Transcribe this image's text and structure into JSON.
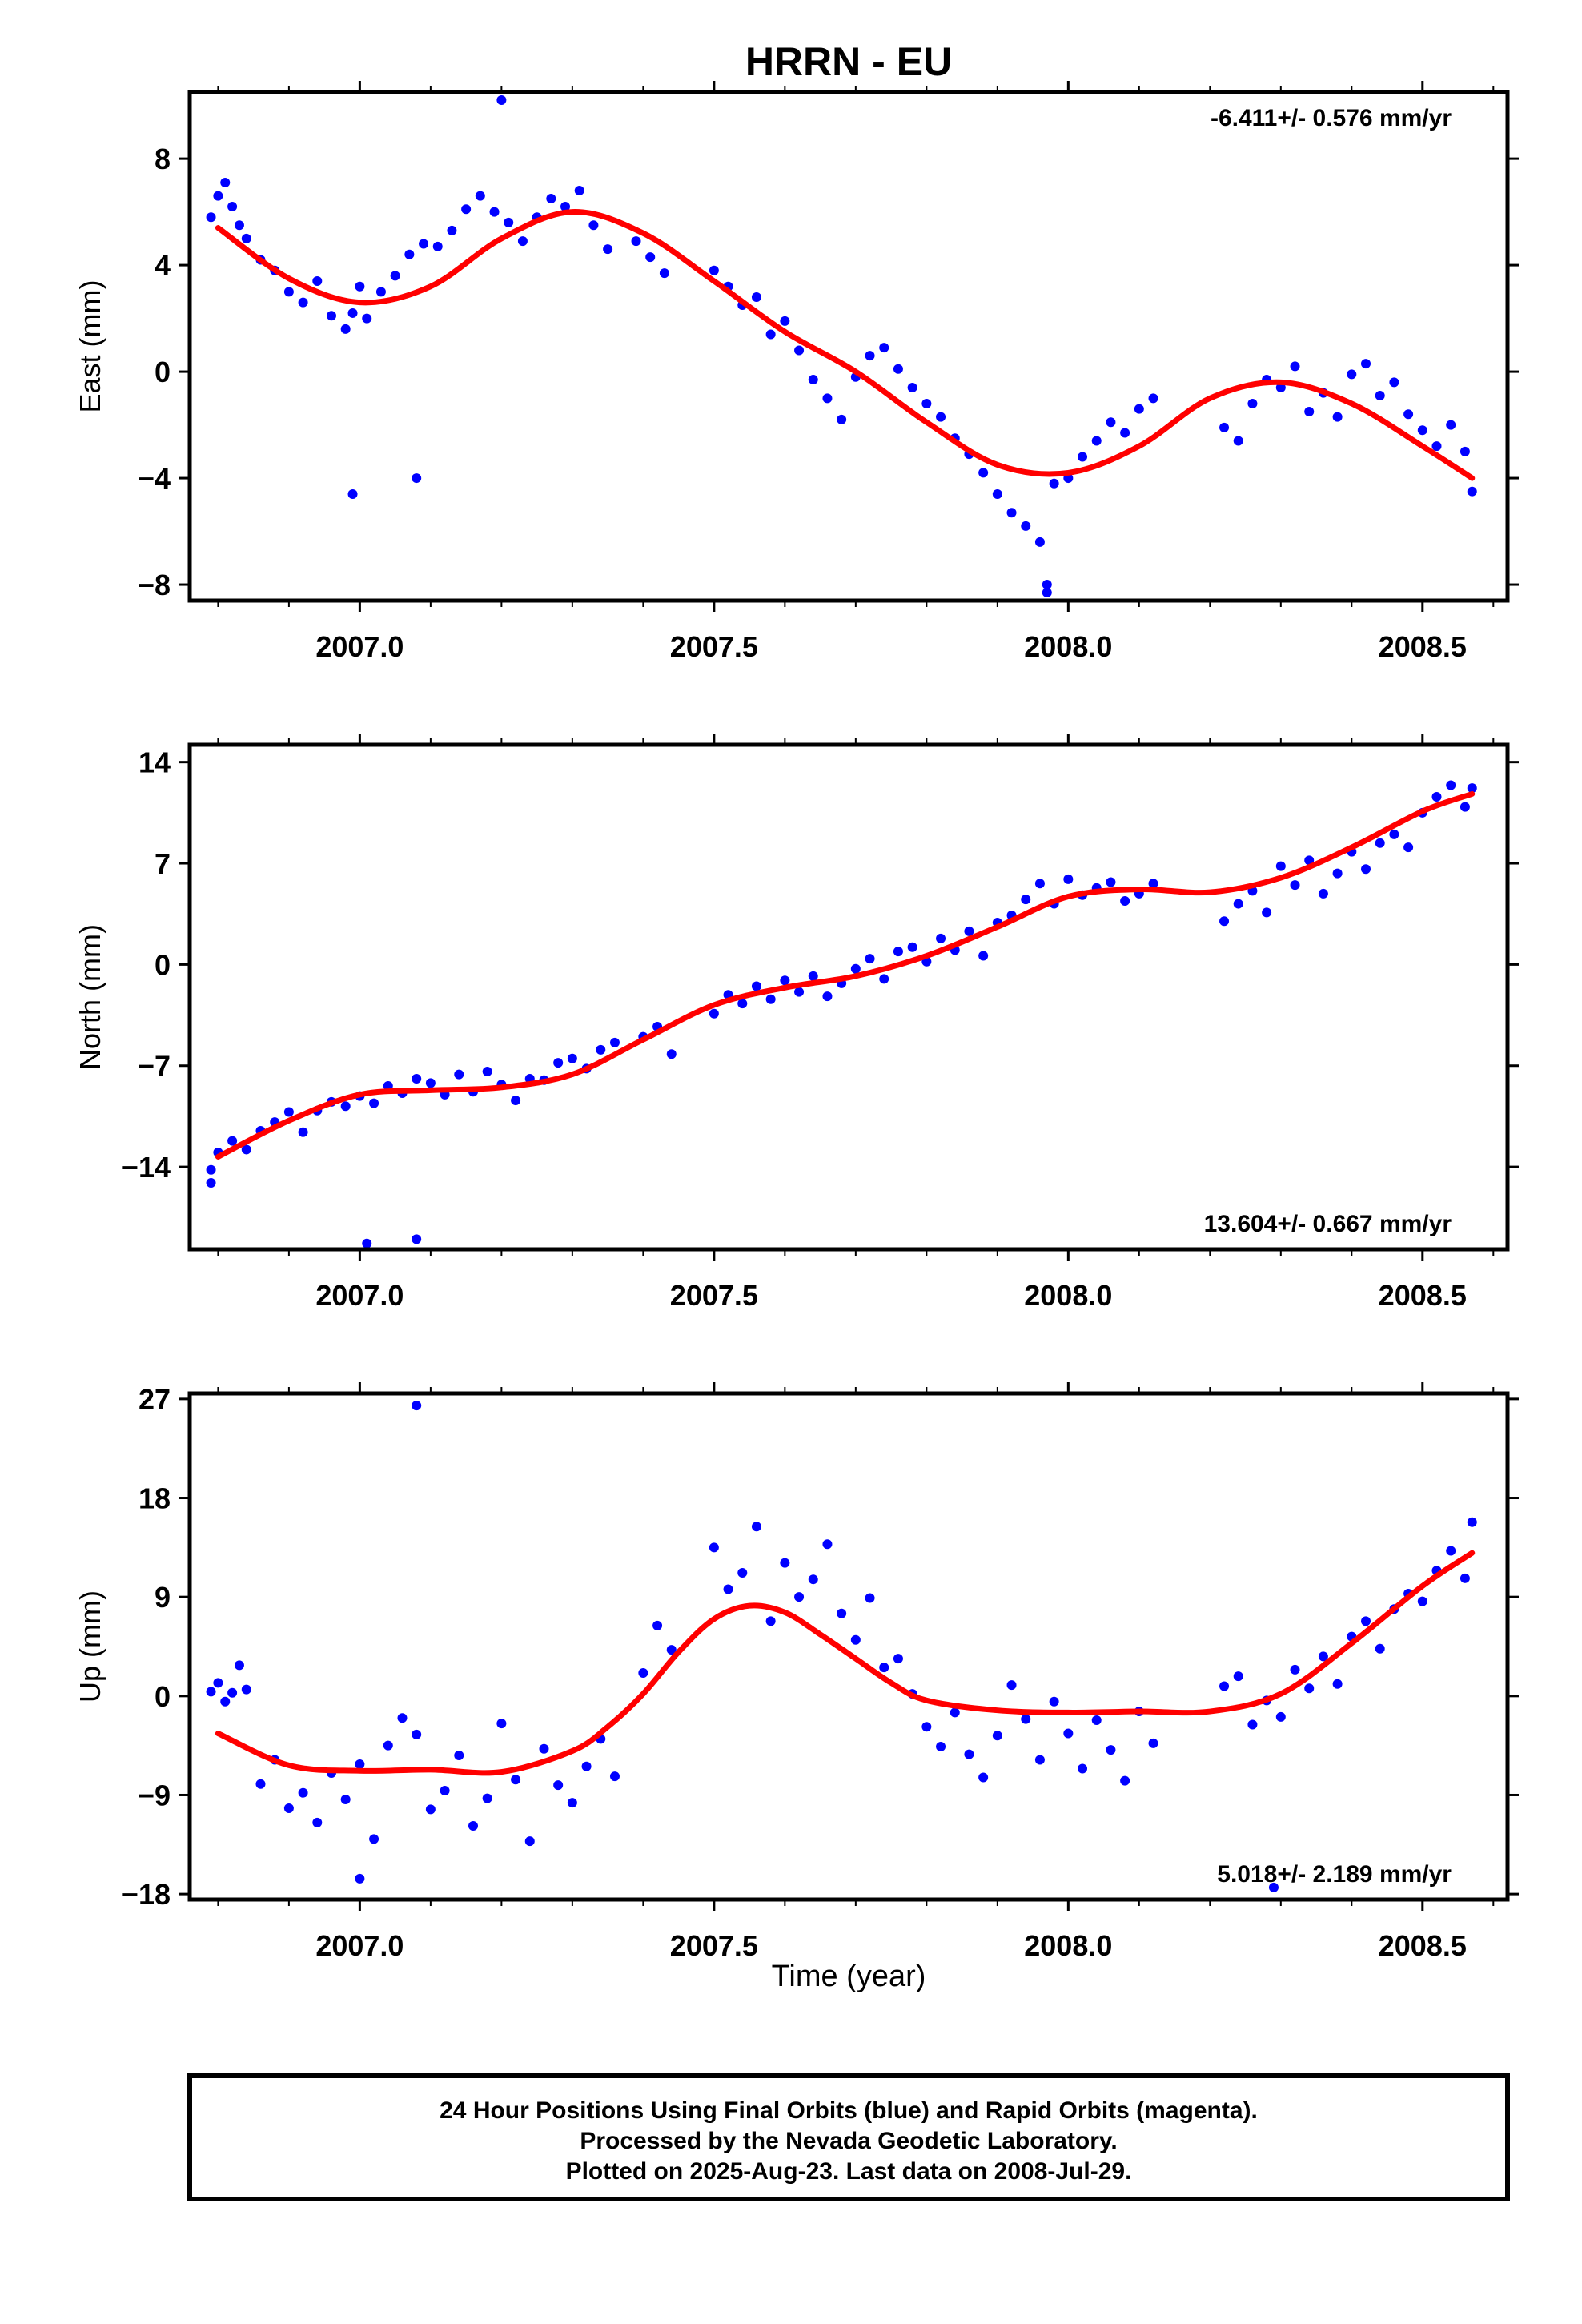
{
  "title": "HRRN - EU",
  "colors": {
    "points": "#0000ff",
    "fit": "#ff0000",
    "frame": "#000000"
  },
  "xlabel": "Time (year)",
  "footer": {
    "lines": [
      "24 Hour Positions Using Final Orbits (blue) and Rapid Orbits (magenta).",
      "Processed by the Nevada Geodetic Laboratory.",
      "Plotted on 2025-Aug-23. Last data on 2008-Jul-29."
    ]
  },
  "chart_data": [
    {
      "type": "scatter",
      "name": "East",
      "ylabel": "East (mm)",
      "xlim": [
        2006.76,
        2008.62
      ],
      "ylim": [
        -8.6,
        10.5
      ],
      "xticks": [
        2007.0,
        2007.5,
        2008.0,
        2008.5
      ],
      "xtick_labels": [
        "2007.0",
        "2007.5",
        "2008.0",
        "2008.5"
      ],
      "yticks": [
        -8,
        -4,
        0,
        4,
        8
      ],
      "ytick_labels": [
        "−8",
        "−4",
        "0",
        "4",
        "8"
      ],
      "rate_text": "-6.411+/- 0.576 mm/yr",
      "rate_position": "top-right",
      "fit": {
        "x": [
          2006.8,
          2006.9,
          2007.0,
          2007.1,
          2007.2,
          2007.3,
          2007.4,
          2007.5,
          2007.6,
          2007.7,
          2007.8,
          2007.9,
          2008.0,
          2008.1,
          2008.2,
          2008.3,
          2008.4,
          2008.5,
          2008.57
        ],
        "y": [
          5.4,
          3.5,
          2.6,
          3.2,
          5.0,
          6.0,
          5.2,
          3.4,
          1.5,
          0.0,
          -1.9,
          -3.5,
          -3.8,
          -2.8,
          -1.0,
          -0.4,
          -1.2,
          -2.8,
          -4.0
        ]
      },
      "points": {
        "x": [
          2006.79,
          2006.8,
          2006.81,
          2006.82,
          2006.83,
          2006.84,
          2006.86,
          2006.88,
          2006.9,
          2006.92,
          2006.94,
          2006.96,
          2006.98,
          2006.99,
          2007.0,
          2007.01,
          2007.03,
          2007.05,
          2007.07,
          2007.09,
          2007.11,
          2007.13,
          2007.15,
          2007.17,
          2007.19,
          2007.21,
          2007.23,
          2007.25,
          2007.27,
          2007.29,
          2007.31,
          2007.33,
          2007.35,
          2007.39,
          2007.41,
          2007.43,
          2007.5,
          2007.52,
          2007.54,
          2007.56,
          2007.58,
          2007.6,
          2007.62,
          2007.64,
          2007.66,
          2007.68,
          2007.7,
          2007.72,
          2007.74,
          2007.76,
          2007.78,
          2007.8,
          2007.82,
          2007.84,
          2007.86,
          2007.88,
          2007.9,
          2007.92,
          2007.94,
          2007.96,
          2007.98,
          2008.0,
          2008.02,
          2008.04,
          2008.06,
          2008.08,
          2008.1,
          2008.12,
          2008.22,
          2008.24,
          2008.26,
          2008.28,
          2008.3,
          2008.32,
          2008.34,
          2008.36,
          2008.38,
          2008.4,
          2008.42,
          2008.44,
          2008.46,
          2008.48,
          2008.5,
          2008.52,
          2008.54,
          2008.56,
          2008.57,
          2006.99,
          2007.08,
          2007.2,
          2007.97,
          2007.97
        ],
        "y": [
          5.8,
          6.6,
          7.1,
          6.2,
          5.5,
          5.0,
          4.2,
          3.8,
          3.0,
          2.6,
          3.4,
          2.1,
          1.6,
          2.2,
          3.2,
          2.0,
          3.0,
          3.6,
          4.4,
          4.8,
          4.7,
          5.3,
          6.1,
          6.6,
          6.0,
          5.6,
          4.9,
          5.8,
          6.5,
          6.2,
          6.8,
          5.5,
          4.6,
          4.9,
          4.3,
          3.7,
          3.8,
          3.2,
          2.5,
          2.8,
          1.4,
          1.9,
          0.8,
          -0.3,
          -1.0,
          -1.8,
          -0.2,
          0.6,
          0.9,
          0.1,
          -0.6,
          -1.2,
          -1.7,
          -2.5,
          -3.1,
          -3.8,
          -4.6,
          -5.3,
          -5.8,
          -6.4,
          -4.2,
          -4.0,
          -3.2,
          -2.6,
          -1.9,
          -2.3,
          -1.4,
          -1.0,
          -2.1,
          -2.6,
          -1.2,
          -0.3,
          -0.6,
          0.2,
          -1.5,
          -0.8,
          -1.7,
          -0.1,
          0.3,
          -0.9,
          -0.4,
          -1.6,
          -2.2,
          -2.8,
          -2.0,
          -3.0,
          -4.5,
          -4.6,
          -4.0,
          10.2,
          -8.0,
          -8.3
        ]
      }
    },
    {
      "type": "scatter",
      "name": "North",
      "ylabel": "North (mm)",
      "xlim": [
        2006.76,
        2008.62
      ],
      "ylim": [
        -19.7,
        15.2
      ],
      "xticks": [
        2007.0,
        2007.5,
        2008.0,
        2008.5
      ],
      "xtick_labels": [
        "2007.0",
        "2007.5",
        "2008.0",
        "2008.5"
      ],
      "yticks": [
        -14,
        -7,
        0,
        7,
        14
      ],
      "ytick_labels": [
        "−14",
        "−7",
        "0",
        "7",
        "14"
      ],
      "rate_text": "13.604+/- 0.667 mm/yr",
      "rate_position": "bottom-right",
      "fit": {
        "x": [
          2006.8,
          2006.9,
          2007.0,
          2007.1,
          2007.2,
          2007.3,
          2007.4,
          2007.5,
          2007.6,
          2007.7,
          2007.8,
          2007.9,
          2008.0,
          2008.1,
          2008.2,
          2008.3,
          2008.4,
          2008.5,
          2008.57
        ],
        "y": [
          -13.3,
          -10.8,
          -9.0,
          -8.7,
          -8.5,
          -7.6,
          -5.2,
          -2.8,
          -1.6,
          -0.8,
          0.6,
          2.6,
          4.7,
          5.2,
          5.0,
          6.0,
          8.1,
          10.6,
          11.8
        ]
      },
      "points": {
        "x": [
          2006.79,
          2006.8,
          2006.82,
          2006.84,
          2006.86,
          2006.88,
          2006.9,
          2006.92,
          2006.94,
          2006.96,
          2006.98,
          2007.0,
          2007.02,
          2007.04,
          2007.06,
          2007.08,
          2007.1,
          2007.12,
          2007.14,
          2007.16,
          2007.18,
          2007.2,
          2007.22,
          2007.24,
          2007.26,
          2007.28,
          2007.3,
          2007.32,
          2007.34,
          2007.36,
          2007.4,
          2007.42,
          2007.44,
          2007.5,
          2007.52,
          2007.54,
          2007.56,
          2007.58,
          2007.6,
          2007.62,
          2007.64,
          2007.66,
          2007.68,
          2007.7,
          2007.72,
          2007.74,
          2007.76,
          2007.78,
          2007.8,
          2007.82,
          2007.84,
          2007.86,
          2007.88,
          2007.9,
          2007.92,
          2007.94,
          2007.96,
          2007.98,
          2008.0,
          2008.02,
          2008.04,
          2008.06,
          2008.08,
          2008.1,
          2008.12,
          2008.22,
          2008.24,
          2008.26,
          2008.28,
          2008.3,
          2008.32,
          2008.34,
          2008.36,
          2008.38,
          2008.4,
          2008.42,
          2008.44,
          2008.46,
          2008.48,
          2008.5,
          2008.52,
          2008.54,
          2008.56,
          2008.57,
          2006.79,
          2007.01,
          2007.08
        ],
        "y": [
          -14.2,
          -13.0,
          -12.2,
          -12.8,
          -11.5,
          -10.9,
          -10.2,
          -11.6,
          -10.1,
          -9.5,
          -9.8,
          -9.1,
          -9.6,
          -8.4,
          -8.9,
          -7.9,
          -8.2,
          -9.0,
          -7.6,
          -8.8,
          -7.4,
          -8.3,
          -9.4,
          -7.9,
          -8.0,
          -6.8,
          -6.5,
          -7.2,
          -5.9,
          -5.4,
          -5.0,
          -4.3,
          -6.2,
          -3.4,
          -2.1,
          -2.7,
          -1.5,
          -2.4,
          -1.1,
          -1.9,
          -0.8,
          -2.2,
          -1.3,
          -0.3,
          0.4,
          -1.0,
          0.9,
          1.2,
          0.2,
          1.8,
          1.0,
          2.3,
          0.6,
          2.9,
          3.4,
          4.5,
          5.6,
          4.2,
          5.9,
          4.8,
          5.3,
          5.7,
          4.4,
          4.9,
          5.6,
          3.0,
          4.2,
          5.1,
          3.6,
          6.8,
          5.5,
          7.2,
          4.9,
          6.3,
          7.8,
          6.6,
          8.4,
          9.0,
          8.1,
          10.5,
          11.6,
          12.4,
          10.9,
          12.2,
          -15.1,
          -19.3,
          -19.0
        ]
      }
    },
    {
      "type": "scatter",
      "name": "Up",
      "ylabel": "Up (mm)",
      "xlim": [
        2006.76,
        2008.62
      ],
      "ylim": [
        -18.5,
        27.5
      ],
      "xticks": [
        2007.0,
        2007.5,
        2008.0,
        2008.5
      ],
      "xtick_labels": [
        "2007.0",
        "2007.5",
        "2008.0",
        "2008.5"
      ],
      "yticks": [
        -18,
        -9,
        0,
        9,
        18,
        27
      ],
      "ytick_labels": [
        "−18",
        "−9",
        "0",
        "9",
        "18",
        "27"
      ],
      "rate_text": "5.018+/- 2.189 mm/yr",
      "rate_position": "bottom-right",
      "fit": {
        "x": [
          2006.8,
          2006.9,
          2007.0,
          2007.1,
          2007.2,
          2007.3,
          2007.35,
          2007.4,
          2007.45,
          2007.5,
          2007.55,
          2007.6,
          2007.65,
          2007.7,
          2007.75,
          2007.8,
          2007.9,
          2008.0,
          2008.1,
          2008.2,
          2008.3,
          2008.4,
          2008.5,
          2008.57
        ],
        "y": [
          -3.4,
          -6.3,
          -6.8,
          -6.7,
          -6.9,
          -5.0,
          -2.8,
          0.2,
          4.0,
          7.0,
          8.2,
          7.6,
          5.6,
          3.4,
          1.2,
          -0.4,
          -1.3,
          -1.5,
          -1.4,
          -1.4,
          0.2,
          4.8,
          10.0,
          13.0
        ]
      },
      "points": {
        "x": [
          2006.79,
          2006.8,
          2006.81,
          2006.82,
          2006.83,
          2006.84,
          2006.86,
          2006.88,
          2006.9,
          2006.92,
          2006.94,
          2006.96,
          2006.98,
          2007.0,
          2007.02,
          2007.04,
          2007.06,
          2007.08,
          2007.1,
          2007.12,
          2007.14,
          2007.16,
          2007.18,
          2007.2,
          2007.22,
          2007.24,
          2007.26,
          2007.28,
          2007.3,
          2007.32,
          2007.34,
          2007.36,
          2007.4,
          2007.42,
          2007.44,
          2007.5,
          2007.52,
          2007.54,
          2007.56,
          2007.58,
          2007.6,
          2007.62,
          2007.64,
          2007.66,
          2007.68,
          2007.7,
          2007.72,
          2007.74,
          2007.76,
          2007.78,
          2007.8,
          2007.82,
          2007.84,
          2007.86,
          2007.88,
          2007.9,
          2007.92,
          2007.94,
          2007.96,
          2007.98,
          2008.0,
          2008.02,
          2008.04,
          2008.06,
          2008.08,
          2008.1,
          2008.12,
          2008.22,
          2008.24,
          2008.26,
          2008.28,
          2008.3,
          2008.32,
          2008.34,
          2008.36,
          2008.38,
          2008.4,
          2008.42,
          2008.44,
          2008.46,
          2008.48,
          2008.5,
          2008.52,
          2008.54,
          2008.56,
          2008.57,
          2007.08,
          2007.0,
          2008.29
        ],
        "y": [
          0.4,
          1.2,
          -0.5,
          0.3,
          2.8,
          0.6,
          -8.0,
          -5.8,
          -10.2,
          -8.8,
          -11.5,
          -7.0,
          -9.4,
          -6.2,
          -13.0,
          -4.5,
          -2.0,
          -3.5,
          -10.3,
          -8.6,
          -5.4,
          -11.8,
          -9.3,
          -2.5,
          -7.6,
          -13.2,
          -4.8,
          -8.1,
          -9.7,
          -6.4,
          -3.9,
          -7.3,
          2.1,
          6.4,
          4.2,
          13.5,
          9.7,
          11.2,
          15.4,
          6.8,
          12.1,
          9.0,
          10.6,
          13.8,
          7.5,
          5.1,
          8.9,
          2.6,
          3.4,
          0.2,
          -2.8,
          -4.6,
          -1.5,
          -5.3,
          -7.4,
          -3.6,
          1.0,
          -2.1,
          -5.8,
          -0.5,
          -3.4,
          -6.6,
          -2.2,
          -4.9,
          -7.7,
          -1.4,
          -4.3,
          0.9,
          1.8,
          -2.6,
          -0.4,
          -1.9,
          2.4,
          0.7,
          3.6,
          1.1,
          5.4,
          6.8,
          4.3,
          7.9,
          9.3,
          8.6,
          11.4,
          13.2,
          10.7,
          15.8,
          26.4,
          -16.6,
          -17.4
        ]
      }
    }
  ]
}
